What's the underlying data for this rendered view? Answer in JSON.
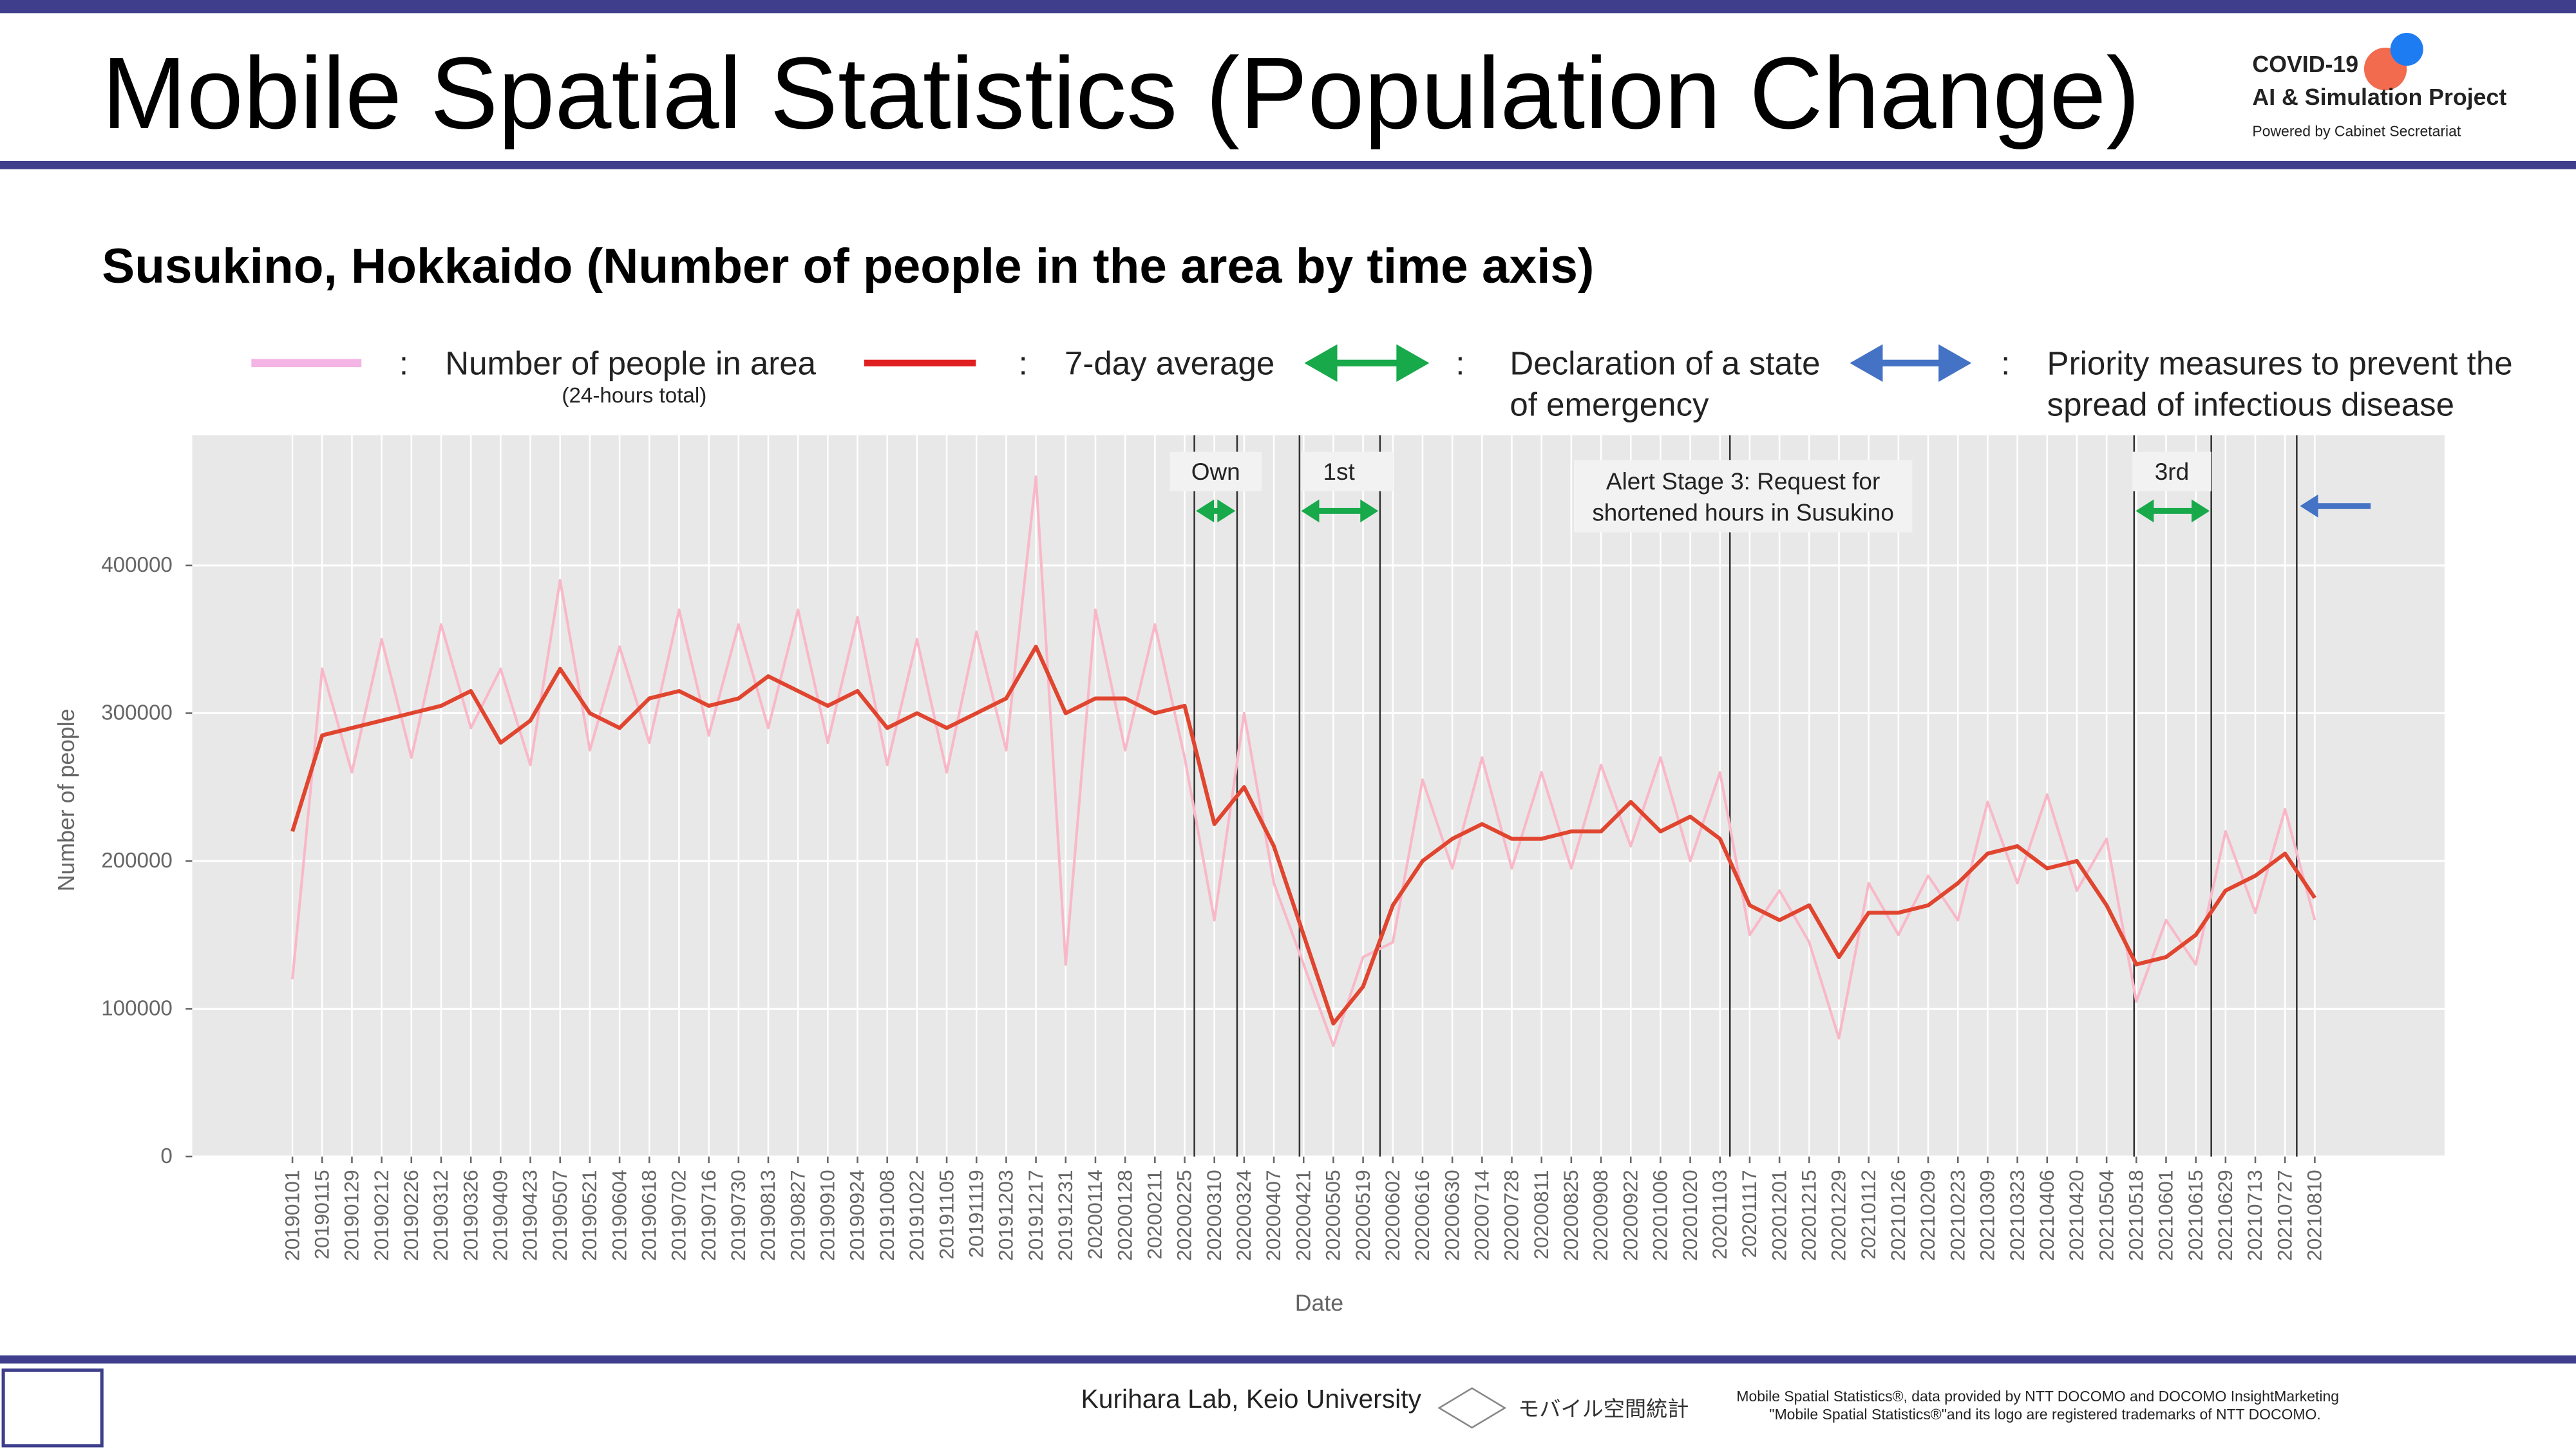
{
  "page": {
    "title": "Mobile Spatial Statistics (Population Change)",
    "subtitle": "Susukino, Hokkaido (Number of people in the area by time axis)",
    "logo": {
      "line1": "COVID-19",
      "line2": "AI & Simulation Project",
      "line3": "Powered by Cabinet Secretariat"
    },
    "legend_note": "(24-hours total)",
    "legend_emergency": [
      "Declaration of a state",
      "of emergency"
    ],
    "legend_priority": [
      "Priority measures to prevent the",
      "spread of infectious disease"
    ],
    "colon": ":",
    "footer": {
      "lab": "Kurihara Lab, Keio University",
      "brand": "モバイル空間統計",
      "credit1": "Mobile Spatial Statistics®, data provided by NTT DOCOMO and DOCOMO InsightMarketing",
      "credit2": "\"Mobile Spatial Statistics®\"and its logo are registered trademarks of NTT DOCOMO."
    }
  },
  "chart_data": {
    "type": "line",
    "xlabel": "Date",
    "ylabel": "Number of people",
    "categories": [
      "20190101",
      "20190115",
      "20190129",
      "20190212",
      "20190226",
      "20190312",
      "20190326",
      "20190409",
      "20190423",
      "20190507",
      "20190521",
      "20190604",
      "20190618",
      "20190702",
      "20190716",
      "20190730",
      "20190813",
      "20190827",
      "20190910",
      "20190924",
      "20191008",
      "20191022",
      "20191105",
      "20191119",
      "20191203",
      "20191217",
      "20191231",
      "20200114",
      "20200128",
      "20200211",
      "20200225",
      "20200310",
      "20200324",
      "20200407",
      "20200421",
      "20200505",
      "20200519",
      "20200602",
      "20200616",
      "20200630",
      "20200714",
      "20200728",
      "20200811",
      "20200825",
      "20200908",
      "20200922",
      "20201006",
      "20201020",
      "20201103",
      "20201117",
      "20201201",
      "20201215",
      "20201229",
      "20210112",
      "20210126",
      "20210209",
      "20210223",
      "20210309",
      "20210323",
      "20210406",
      "20210420",
      "20210504",
      "20210518",
      "20210601",
      "20210615",
      "20210629",
      "20210713",
      "20210727",
      "20210810"
    ],
    "series": [
      {
        "name": "Number of people in area",
        "color": "#f9b8c8",
        "values": [
          120000,
          330000,
          260000,
          350000,
          270000,
          360000,
          290000,
          330000,
          265000,
          390000,
          275000,
          345000,
          280000,
          370000,
          285000,
          360000,
          290000,
          370000,
          280000,
          365000,
          265000,
          350000,
          260000,
          355000,
          275000,
          460000,
          130000,
          370000,
          275000,
          360000,
          270000,
          160000,
          300000,
          185000,
          130000,
          75000,
          135000,
          145000,
          255000,
          195000,
          270000,
          195000,
          260000,
          195000,
          265000,
          210000,
          270000,
          200000,
          260000,
          150000,
          180000,
          145000,
          80000,
          185000,
          150000,
          190000,
          160000,
          240000,
          185000,
          245000,
          180000,
          215000,
          105000,
          160000,
          130000,
          220000,
          165000,
          235000,
          160000
        ]
      },
      {
        "name": "7-day average",
        "color": "#e0452f",
        "values": [
          220000,
          285000,
          290000,
          295000,
          300000,
          305000,
          315000,
          280000,
          295000,
          330000,
          300000,
          290000,
          310000,
          315000,
          305000,
          310000,
          325000,
          315000,
          305000,
          315000,
          290000,
          300000,
          290000,
          300000,
          310000,
          345000,
          300000,
          310000,
          310000,
          300000,
          305000,
          225000,
          250000,
          210000,
          150000,
          90000,
          115000,
          170000,
          200000,
          215000,
          225000,
          215000,
          215000,
          220000,
          220000,
          240000,
          220000,
          230000,
          215000,
          170000,
          160000,
          170000,
          135000,
          165000,
          165000,
          170000,
          185000,
          205000,
          210000,
          195000,
          200000,
          170000,
          130000,
          135000,
          150000,
          180000,
          190000,
          205000,
          175000
        ]
      }
    ],
    "annotations": [
      {
        "text": "Own"
      },
      {
        "text": "1st"
      },
      {
        "text": [
          "Alert Stage 3: Request for",
          "shortened hours in Susukino"
        ]
      },
      {
        "text": "3rd"
      }
    ],
    "ylim": [
      0,
      488000
    ],
    "yticks": [
      0,
      100000,
      200000,
      300000,
      400000
    ],
    "grid": true
  }
}
